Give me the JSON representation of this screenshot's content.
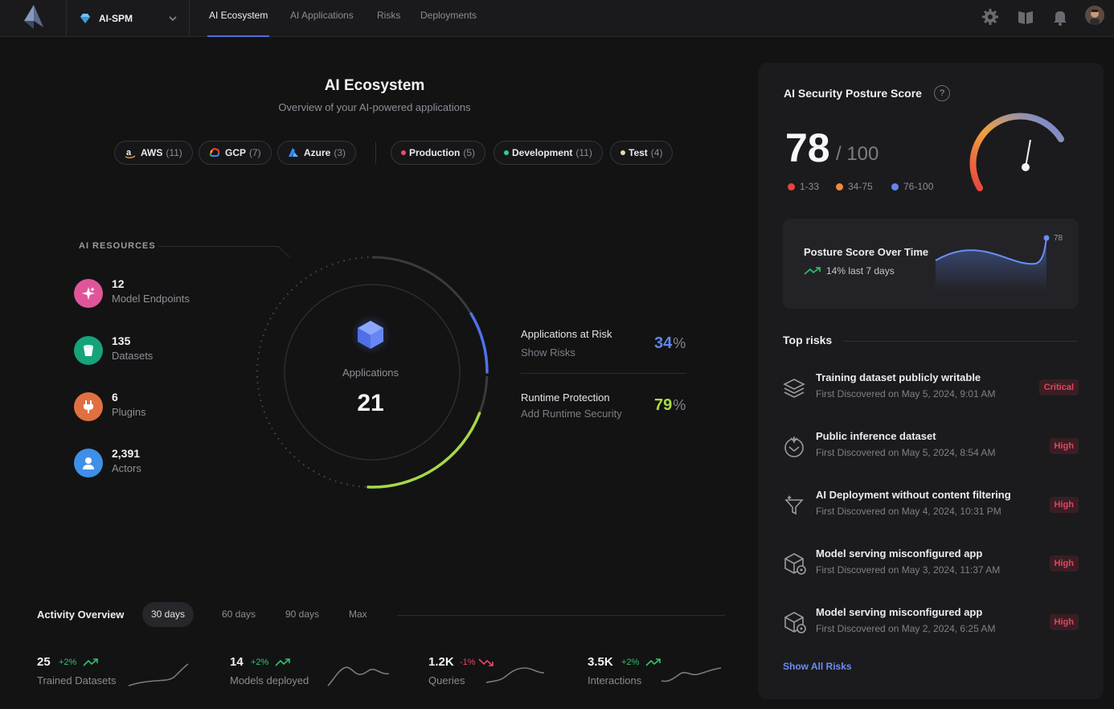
{
  "header": {
    "product": "AI-SPM",
    "tabs": [
      {
        "label": "AI Ecosystem",
        "active": true
      },
      {
        "label": "AI Applications",
        "active": false
      },
      {
        "label": "Risks",
        "active": false
      },
      {
        "label": "Deployments",
        "active": false
      }
    ],
    "icons": [
      "gear-icon",
      "book-icon",
      "bell-icon",
      "user-avatar"
    ]
  },
  "main": {
    "title": "AI Ecosystem",
    "subtitle": "Overview of your AI-powered applications",
    "clouds": [
      {
        "label": "AWS",
        "count": "(11)"
      },
      {
        "label": "GCP",
        "count": "(7)"
      },
      {
        "label": "Azure",
        "count": "(3)"
      }
    ],
    "environments": [
      {
        "label": "Production",
        "count": "(5)",
        "color": "#e8506a"
      },
      {
        "label": "Development",
        "count": "(11)",
        "color": "#2ecf8f"
      },
      {
        "label": "Test",
        "count": "(4)",
        "color": "#e9d9a6"
      }
    ]
  },
  "resources": {
    "heading": "AI RESOURCES",
    "items": [
      {
        "value": "12",
        "label": "Model Endpoints",
        "color": "#e0559a",
        "icon": "sparkle-icon"
      },
      {
        "value": "135",
        "label": "Datasets",
        "color": "#17a37a",
        "icon": "bucket-icon"
      },
      {
        "value": "6",
        "label": "Plugins",
        "color": "#e07040",
        "icon": "plug-icon"
      },
      {
        "value": "2,391",
        "label": "Actors",
        "color": "#3e8fe8",
        "icon": "person-icon"
      }
    ]
  },
  "applications": {
    "label": "Applications",
    "value": "21",
    "risk_fraction": 0.34,
    "runtime_fraction": 0.79
  },
  "stats": [
    {
      "title": "Applications at Risk",
      "link": "Show Risks",
      "value": "34",
      "unit": "%",
      "color": "#5f86f0"
    },
    {
      "title": "Runtime Protection",
      "link": "Add Runtime Security",
      "value": "79",
      "unit": "%",
      "color": "#a9dd45"
    }
  ],
  "activity": {
    "title": "Activity Overview",
    "ranges": [
      {
        "label": "30 days",
        "active": true
      },
      {
        "label": "60 days",
        "active": false
      },
      {
        "label": "90 days",
        "active": false
      },
      {
        "label": "Max",
        "active": false
      }
    ],
    "metrics": [
      {
        "value": "25",
        "change": "+2%",
        "trend": "up",
        "label": "Trained Datasets"
      },
      {
        "value": "14",
        "change": "+2%",
        "trend": "up",
        "label": "Models deployed"
      },
      {
        "value": "1.2K",
        "change": "-1%",
        "trend": "down",
        "label": "Queries"
      },
      {
        "value": "3.5K",
        "change": "+2%",
        "trend": "up",
        "label": "Interactions"
      }
    ],
    "colors": {
      "up": "#2fc46b",
      "down": "#e8485f"
    }
  },
  "posture": {
    "title": "AI Security Posture Score",
    "help": "?",
    "score": "78",
    "max": "/ 100",
    "legend": [
      {
        "label": "1-33",
        "color": "#e8433f"
      },
      {
        "label": "34-75",
        "color": "#f08a3c"
      },
      {
        "label": "76-100",
        "color": "#5f86f0"
      }
    ],
    "trend_title": "Posture Score Over Time",
    "trend_sub": "14% last 7 days",
    "trend_end_value": "78"
  },
  "top_risks": {
    "heading": "Top risks",
    "items": [
      {
        "title": "Training dataset publicly writable",
        "date": "First Discovered on May 5, 2024, 9:01 AM",
        "severity": "Critical",
        "icon": "layers-icon"
      },
      {
        "title": "Public inference dataset",
        "date": "First Discovered on May 5, 2024, 8:54 AM",
        "severity": "High",
        "icon": "inference-icon"
      },
      {
        "title": "AI Deployment without content filtering",
        "date": "First Discovered on May 4, 2024, 10:31 PM",
        "severity": "High",
        "icon": "filter-icon"
      },
      {
        "title": "Model serving misconfigured app",
        "date": "First Discovered on May 3, 2024, 11:37 AM",
        "severity": "High",
        "icon": "cube-gear-icon"
      },
      {
        "title": "Model serving misconfigured app",
        "date": "First Discovered on May 2, 2024, 6:25 AM",
        "severity": "High",
        "icon": "cube-gear-icon"
      }
    ],
    "show_all": "Show All Risks"
  }
}
